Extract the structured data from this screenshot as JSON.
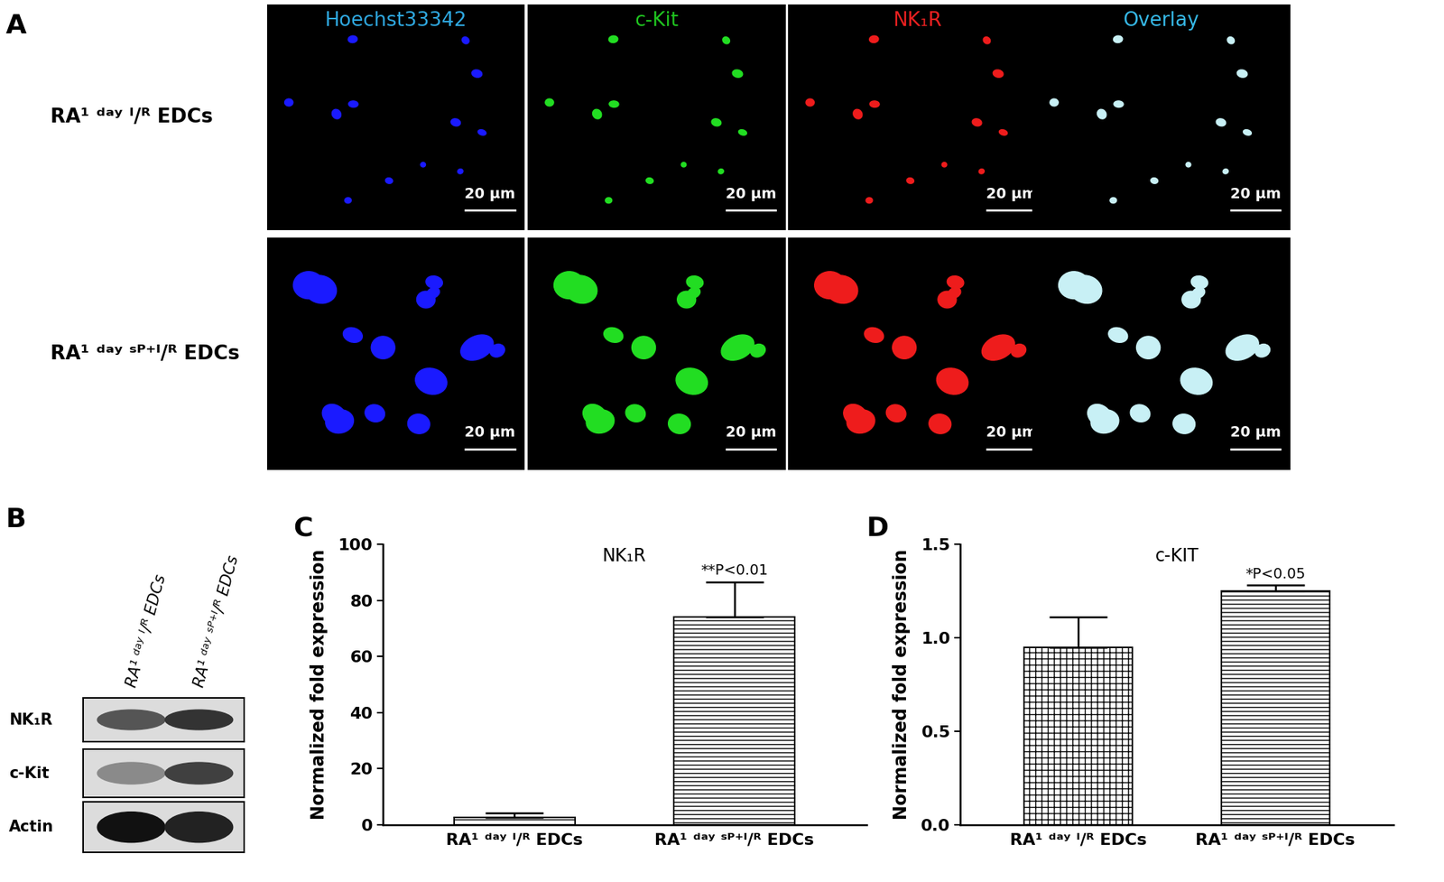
{
  "panel_A": {
    "panel_label": "A",
    "columns": [
      {
        "label": "Hoechst33342",
        "color": "#2fa8e0"
      },
      {
        "label": "c-Kit",
        "color": "#1fc41f"
      },
      {
        "label": "NK₁R",
        "color": "#e82020"
      },
      {
        "label": "Overlay",
        "color": "#36b8e6"
      }
    ],
    "rows": [
      "RA¹ ᵈᵃʸ ᴵ/ᴿ EDCs",
      "RA¹ ᵈᵃʸ ˢᴾ⁺ᴵ/ᴿ EDCs"
    ],
    "scale_bar": "20 μm"
  },
  "panel_B": {
    "panel_label": "B",
    "lanes": [
      "RA¹ ᵈᵃʸ ᴵ/ᴿ EDCs",
      "RA¹ ᵈᵃʸ ˢᴾ⁺ᴵ/ᴿ EDCs"
    ],
    "bands": [
      "NK₁R",
      "c-Kit",
      "Actin"
    ]
  },
  "chart_data": [
    {
      "panel_label": "C",
      "type": "bar",
      "title": "NK₁R",
      "y_label": "Normalized fold expression",
      "categories": [
        "RA¹ ᵈᵃʸ ᴵ/ᴿ EDCs",
        "RA¹ ᵈᵃʸ ˢᴾ⁺ᴵ/ᴿ EDCs"
      ],
      "values": [
        2.5,
        74
      ],
      "error": [
        1.8,
        12.5
      ],
      "color": "#ffffff",
      "ylim": [
        0,
        100
      ],
      "yticks": [
        0,
        20,
        40,
        60,
        80,
        100
      ],
      "annotation": "**P<0.01"
    },
    {
      "panel_label": "D",
      "type": "bar",
      "title": "c-KIT",
      "y_label": "Normalized fold expression",
      "categories": [
        "RA¹ ᵈᵃʸ ᴵ/ᴿ EDCs",
        "RA¹ ᵈᵃʸ ˢᴾ⁺ᴵ/ᴿ EDCs"
      ],
      "values": [
        0.95,
        1.25
      ],
      "error": [
        0.16,
        0.03
      ],
      "color": "#ffffff",
      "ylim": [
        0,
        1.5
      ],
      "yticks": [
        {
          "value": 0,
          "label": "0.0"
        },
        {
          "value": 0.5,
          "label": "0.5"
        },
        {
          "value": 1,
          "label": "1.0"
        },
        {
          "value": 1.5,
          "label": "1.5"
        }
      ],
      "annotation": "*P<0.05"
    }
  ]
}
